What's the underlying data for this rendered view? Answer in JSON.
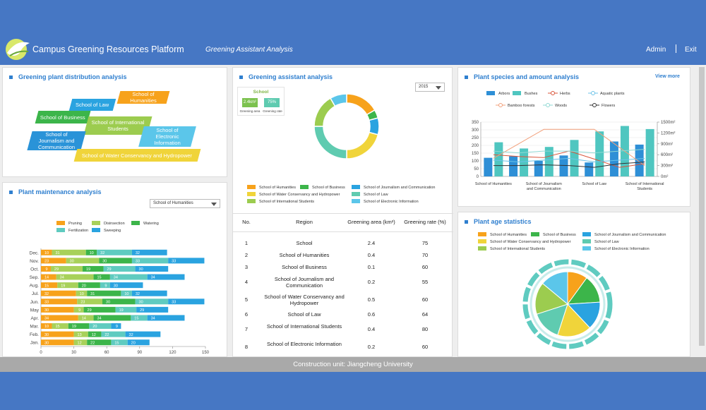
{
  "header": {
    "title": "Campus Greening Resources Platform",
    "nav": "Greening Assistant Analysis",
    "user": "Admin",
    "exit": "Exit"
  },
  "footer": "Construction unit: Jiangcheng University",
  "distribution": {
    "title": "Greening plant distribution analysis",
    "tags": [
      "School of Humanities",
      "School of Law",
      "School of Business",
      "School of International Students",
      "School of Electronic Information",
      "School of Journalism and Communication",
      "School of Water Conservancy and Hydropower"
    ]
  },
  "card": {
    "title": "School",
    "area": "2.4km²",
    "rate": "75%",
    "area_label": "Greening area",
    "rate_label": "Greening rate"
  },
  "table": {
    "headers": [
      "No.",
      "Region",
      "Greening area (km²)",
      "Greening rate (%)"
    ],
    "rows": [
      [
        1,
        "School",
        2.4,
        75
      ],
      [
        2,
        "School of Humanities",
        0.4,
        70
      ],
      [
        3,
        "School of Business",
        0.1,
        60
      ],
      [
        4,
        "School of Journalism and Communication",
        0.2,
        55
      ],
      [
        5,
        "School of Water Conservancy and Hydropower",
        0.5,
        60
      ],
      [
        6,
        "School of Law",
        0.6,
        64
      ],
      [
        7,
        "School of International Students",
        0.4,
        80
      ],
      [
        8,
        "School of Electronic Information",
        0.2,
        60
      ]
    ]
  },
  "chart_data": [
    {
      "type": "bar",
      "orientation": "horizontal",
      "stacked": true,
      "title": "Plant maintenance analysis",
      "select": "School of Humanities",
      "categories": [
        "Jan.",
        "Feb.",
        "Mar.",
        "Apr.",
        "May",
        "Jun.",
        "Jul.",
        "Aug.",
        "Sep.",
        "Oct.",
        "Nov.",
        "Dec."
      ],
      "series": [
        {
          "name": "Pruning",
          "color": "#f7a21b",
          "values": [
            30,
            30,
            10,
            34,
            30,
            33,
            32,
            15,
            14,
            9,
            23,
            10
          ]
        },
        {
          "name": "Disinsection",
          "color": "#a8d15a",
          "values": [
            12,
            13,
            15,
            14,
            9,
            23,
            10,
            19,
            34,
            29,
            30,
            31
          ]
        },
        {
          "name": "Watering",
          "color": "#3cb54a",
          "values": [
            22,
            12,
            19,
            34,
            29,
            30,
            31,
            20,
            15,
            19,
            30,
            10
          ]
        },
        {
          "name": "Fertilization",
          "color": "#5fcbc0",
          "values": [
            15,
            22,
            20,
            15,
            19,
            30,
            10,
            9,
            34,
            29,
            33,
            32
          ]
        },
        {
          "name": "Sweeping",
          "color": "#2aa3e0",
          "values": [
            20,
            32,
            9,
            34,
            29,
            33,
            32,
            30,
            34,
            30,
            33,
            32
          ]
        }
      ],
      "xlim": [
        0,
        150
      ],
      "xticks": [
        0,
        30,
        60,
        90,
        120,
        150
      ]
    },
    {
      "type": "donut",
      "title": "Greening assistant analysis",
      "select": "2015",
      "categories": [
        "School of Humanities",
        "School of Business",
        "School of Journalism and Communication",
        "School of Water Conservancy and Hydropower",
        "School of Law",
        "School of International Students",
        "School of Electronic Information"
      ],
      "colors": [
        "#f7a21b",
        "#3cb54a",
        "#2aa3e0",
        "#f0d43a",
        "#5fcbb0",
        "#9ccc4f",
        "#5bc6ea"
      ],
      "values": [
        0.4,
        0.1,
        0.2,
        0.5,
        0.6,
        0.4,
        0.2
      ]
    },
    {
      "type": "combo",
      "title": "Plant species and amount analysis",
      "link": "View more",
      "categories": [
        "School of Humanities",
        null,
        "School of Journalism and Communication",
        null,
        "School of Law",
        null,
        "School of International Students"
      ],
      "series": [
        {
          "name": "Arbors",
          "kind": "bar",
          "color": "#2e8fd6",
          "values": [
            120,
            130,
            100,
            135,
            90,
            225,
            205
          ]
        },
        {
          "name": "Bushes",
          "kind": "bar",
          "color": "#4fc6c0",
          "values": [
            220,
            180,
            190,
            235,
            290,
            325,
            305
          ]
        },
        {
          "name": "Herbs",
          "kind": "line",
          "axis": "y2",
          "color": "#d9553a",
          "values": [
            600,
            550,
            520,
            700,
            480,
            250,
            350
          ]
        },
        {
          "name": "Aquatic plants",
          "kind": "line",
          "axis": "y2",
          "color": "#6cc3e8",
          "values": [
            450,
            400,
            450,
            500,
            400,
            450,
            500
          ]
        },
        {
          "name": "Bamboo forests",
          "kind": "line",
          "axis": "y2",
          "color": "#f2a07b",
          "values": [
            500,
            900,
            1300,
            1300,
            1300,
            800,
            300
          ]
        },
        {
          "name": "Woods",
          "kind": "line",
          "axis": "y2",
          "color": "#90d9d4",
          "values": [
            700,
            650,
            700,
            700,
            650,
            700,
            750
          ]
        },
        {
          "name": "Flowers",
          "kind": "line",
          "axis": "y2",
          "color": "#333333",
          "values": [
            300,
            300,
            320,
            300,
            250,
            350,
            400
          ]
        }
      ],
      "ylim": [
        0,
        350
      ],
      "yticks": [
        0,
        50,
        100,
        150,
        200,
        250,
        300,
        350
      ],
      "y2lim": [
        0,
        1500
      ],
      "y2ticks": [
        {
          "value": 0,
          "label": "0m²"
        },
        {
          "value": 300,
          "label": "300m²"
        },
        {
          "value": 600,
          "label": "600m²"
        },
        {
          "value": 900,
          "label": "900m²"
        },
        {
          "value": 1200,
          "label": "1200m²"
        },
        {
          "value": 1500,
          "label": "1500m²"
        }
      ]
    },
    {
      "type": "pie",
      "title": "Plant age statistics",
      "categories": [
        "School of Humanities",
        "School of Business",
        "School of Journalism and Communication",
        "School of Water Conservancy and Hydropower",
        "School of Law",
        "School of International Students",
        "School of Electronic Information"
      ],
      "colors": [
        "#f7a21b",
        "#3cb54a",
        "#2aa3e0",
        "#f0d43a",
        "#5fcbb0",
        "#9ccc4f",
        "#5bc6ea"
      ],
      "values": [
        10,
        14,
        14,
        17,
        15,
        16,
        14
      ]
    }
  ]
}
